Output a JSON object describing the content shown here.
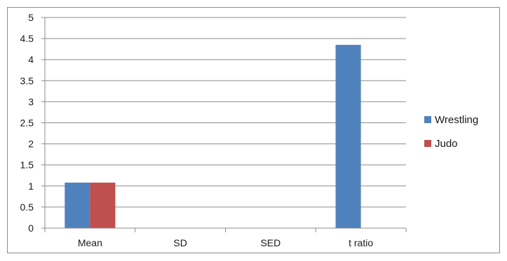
{
  "chart_data": {
    "type": "bar",
    "categories": [
      "Mean",
      "SD",
      "SED",
      "t ratio"
    ],
    "series": [
      {
        "name": "Wrestling",
        "color": "#4f81bd",
        "values": [
          1.08,
          0,
          0,
          4.35
        ]
      },
      {
        "name": "Judo",
        "color": "#c0504d",
        "values": [
          1.08,
          0,
          0,
          0
        ]
      }
    ],
    "y_ticks": [
      "0",
      "0.5",
      "1",
      "1.5",
      "2",
      "2.5",
      "3",
      "3.5",
      "4",
      "4.5",
      "5"
    ],
    "ylim": [
      0,
      5
    ],
    "grid": true,
    "legend_position": "right",
    "title": "",
    "xlabel": "",
    "ylabel": ""
  }
}
